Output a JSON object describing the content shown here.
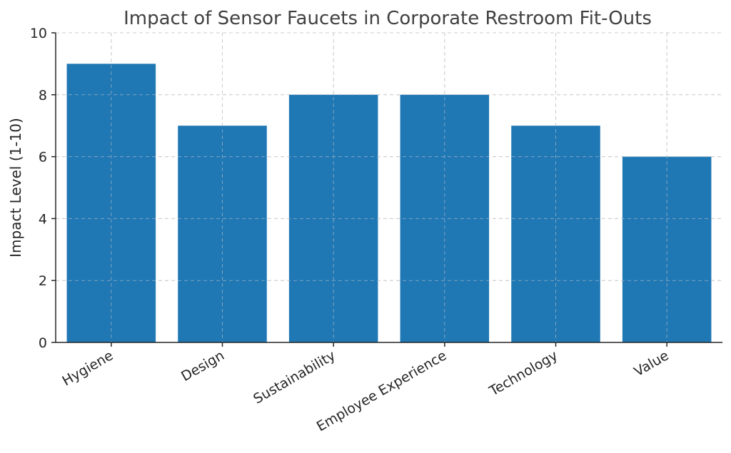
{
  "chart_data": {
    "type": "bar",
    "title": "Impact of Sensor Faucets in Corporate Restroom Fit-Outs",
    "xlabel": "",
    "ylabel": "Impact Level (1-10)",
    "categories": [
      "Hygiene",
      "Design",
      "Sustainability",
      "Employee Experience",
      "Technology",
      "Value"
    ],
    "values": [
      9,
      7,
      8,
      8,
      7,
      6
    ],
    "ylim": [
      0,
      10
    ],
    "yticks": [
      "0",
      "2",
      "4",
      "6",
      "8",
      "10"
    ],
    "grid": true,
    "bar_color": "#1f77b4",
    "xtick_rotation": "angled"
  }
}
